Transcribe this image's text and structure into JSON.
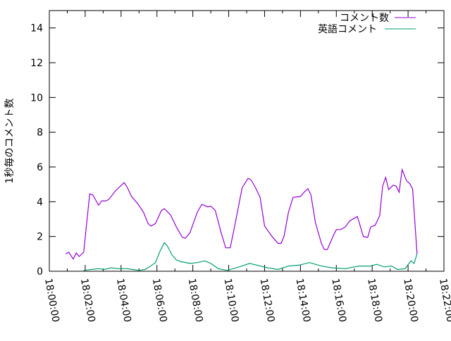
{
  "chart_data": {
    "type": "line",
    "title": "",
    "xlabel": "",
    "ylabel": "1秒毎のコメント数",
    "xlim": [
      "18:00:00",
      "18:22:00"
    ],
    "ylim": [
      0,
      15
    ],
    "x_ticks": [
      "18:00:00",
      "18:02:00",
      "18:04:00",
      "18:06:00",
      "18:08:00",
      "18:10:00",
      "18:12:00",
      "18:14:00",
      "18:16:00",
      "18:18:00",
      "18:20:00",
      "18:22:00"
    ],
    "y_ticks": [
      0,
      2,
      4,
      6,
      8,
      10,
      12,
      14
    ],
    "grid": false,
    "legend_position": "top-right",
    "series": [
      {
        "name": "コメント数",
        "color": "#9400d3",
        "x": [
          "18:00:55",
          "18:01:05",
          "18:01:20",
          "18:01:30",
          "18:01:40",
          "18:01:55",
          "18:02:15",
          "18:02:25",
          "18:02:45",
          "18:02:55",
          "18:03:10",
          "18:03:20",
          "18:03:40",
          "18:04:10",
          "18:04:20",
          "18:04:35",
          "18:04:55",
          "18:05:15",
          "18:05:30",
          "18:05:40",
          "18:05:55",
          "18:06:15",
          "18:06:25",
          "18:06:45",
          "18:07:05",
          "18:07:25",
          "18:07:35",
          "18:07:50",
          "18:08:15",
          "18:08:30",
          "18:08:50",
          "18:09:00",
          "18:09:15",
          "18:09:35",
          "18:09:50",
          "18:10:05",
          "18:10:20",
          "18:10:45",
          "18:11:05",
          "18:11:15",
          "18:11:30",
          "18:11:45",
          "18:12:00",
          "18:12:25",
          "18:12:45",
          "18:12:55",
          "18:13:05",
          "18:13:20",
          "18:13:35",
          "18:14:00",
          "18:14:15",
          "18:14:25",
          "18:14:35",
          "18:14:50",
          "18:15:10",
          "18:15:20",
          "18:15:30",
          "18:15:50",
          "18:16:00",
          "18:16:15",
          "18:16:30",
          "18:16:45",
          "18:17:10",
          "18:17:15",
          "18:17:30",
          "18:17:45",
          "18:17:55",
          "18:18:10",
          "18:18:25",
          "18:18:35",
          "18:18:45",
          "18:18:55",
          "18:19:10",
          "18:19:20",
          "18:19:30",
          "18:19:40",
          "18:19:55",
          "18:20:05",
          "18:20:15",
          "18:20:30"
        ],
        "y": [
          1.0,
          1.1,
          0.7,
          1.05,
          0.85,
          1.1,
          4.45,
          4.4,
          3.8,
          4.05,
          4.05,
          4.15,
          4.6,
          5.1,
          4.85,
          4.3,
          3.9,
          3.4,
          2.75,
          2.6,
          2.75,
          3.5,
          3.6,
          3.25,
          2.55,
          1.95,
          1.9,
          2.2,
          3.4,
          3.85,
          3.7,
          3.75,
          3.5,
          2.2,
          1.35,
          1.35,
          2.6,
          4.8,
          5.35,
          5.25,
          4.8,
          4.25,
          2.6,
          2.0,
          1.6,
          1.6,
          2.0,
          3.4,
          4.25,
          4.3,
          4.6,
          4.75,
          4.4,
          2.8,
          1.6,
          1.25,
          1.25,
          2.05,
          2.4,
          2.4,
          2.55,
          2.9,
          3.15,
          2.9,
          2.0,
          1.95,
          2.55,
          2.65,
          3.2,
          4.9,
          5.4,
          4.7,
          4.95,
          4.9,
          4.55,
          5.85,
          5.2,
          5.05,
          4.75,
          1.0
        ]
      },
      {
        "name": "英語コメント",
        "color": "#009e73",
        "x": [
          "18:01:55",
          "18:02:20",
          "18:02:45",
          "18:03:05",
          "18:03:25",
          "18:03:50",
          "18:04:20",
          "18:04:40",
          "18:05:00",
          "18:05:20",
          "18:05:35",
          "18:05:55",
          "18:06:10",
          "18:06:25",
          "18:06:35",
          "18:06:50",
          "18:07:05",
          "18:07:20",
          "18:07:50",
          "18:08:15",
          "18:08:40",
          "18:09:00",
          "18:09:25",
          "18:09:55",
          "18:10:35",
          "18:11:10",
          "18:11:35",
          "18:12:10",
          "18:12:45",
          "18:13:20",
          "18:13:55",
          "18:14:30",
          "18:15:10",
          "18:15:45",
          "18:16:30",
          "18:17:15",
          "18:17:55",
          "18:18:15",
          "18:18:40",
          "18:19:05",
          "18:19:25",
          "18:19:50",
          "18:20:10",
          "18:20:20",
          "18:20:30"
        ],
        "y": [
          0.05,
          0.1,
          0.15,
          0.1,
          0.2,
          0.15,
          0.15,
          0.1,
          0.05,
          0.1,
          0.25,
          0.5,
          1.15,
          1.65,
          1.45,
          0.95,
          0.65,
          0.55,
          0.45,
          0.5,
          0.6,
          0.45,
          0.15,
          0.05,
          0.25,
          0.45,
          0.35,
          0.2,
          0.1,
          0.3,
          0.35,
          0.5,
          0.3,
          0.2,
          0.15,
          0.3,
          0.3,
          0.4,
          0.25,
          0.3,
          0.1,
          0.15,
          0.6,
          0.45,
          1.0
        ]
      }
    ]
  }
}
